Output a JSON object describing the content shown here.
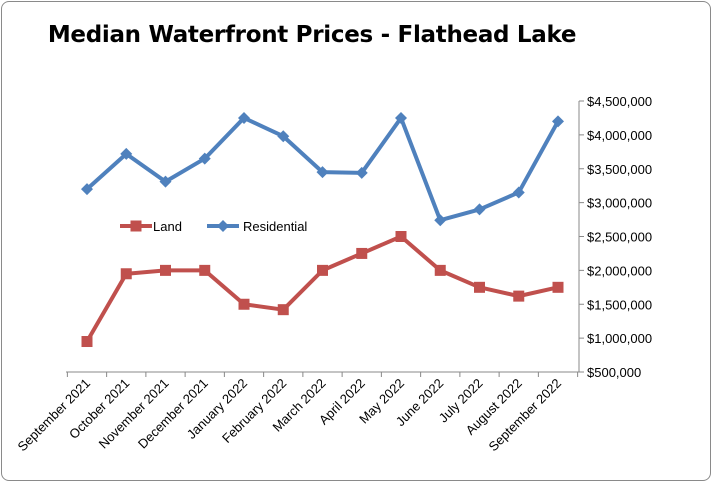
{
  "chart_data": {
    "type": "line",
    "title": "Median Waterfront Prices - Flathead Lake",
    "xlabel": "",
    "ylabel": "",
    "categories": [
      "September 2021",
      "October 2021",
      "November 2021",
      "December 2021",
      "January 2022",
      "February 2022",
      "March 2022",
      "April 2022",
      "May 2022",
      "June 2022",
      "July 2022",
      "August 2022",
      "September 2022"
    ],
    "series": [
      {
        "name": "Land",
        "color": "#c0504d",
        "marker": "square",
        "values": [
          950000,
          1950000,
          2000000,
          2000000,
          1500000,
          1420000,
          2000000,
          2250000,
          2500000,
          2000000,
          1750000,
          1620000,
          1750000
        ]
      },
      {
        "name": "Residential",
        "color": "#4f81bd",
        "marker": "diamond",
        "values": [
          3200000,
          3720000,
          3310000,
          3650000,
          4250000,
          3980000,
          3450000,
          3440000,
          4250000,
          2740000,
          2900000,
          3150000,
          4200000
        ]
      }
    ],
    "ylim": [
      500000,
      4500000
    ],
    "yticks": [
      500000,
      1000000,
      1500000,
      2000000,
      2500000,
      3000000,
      3500000,
      4000000,
      4500000
    ],
    "ytick_labels": [
      "$500,000",
      "$1,000,000",
      "$1,500,000",
      "$2,000,000",
      "$2,500,000",
      "$3,000,000",
      "$3,500,000",
      "$4,000,000",
      "$4,500,000"
    ],
    "y_axis_side": "right",
    "grid": false,
    "legend_position": "middle-left"
  }
}
